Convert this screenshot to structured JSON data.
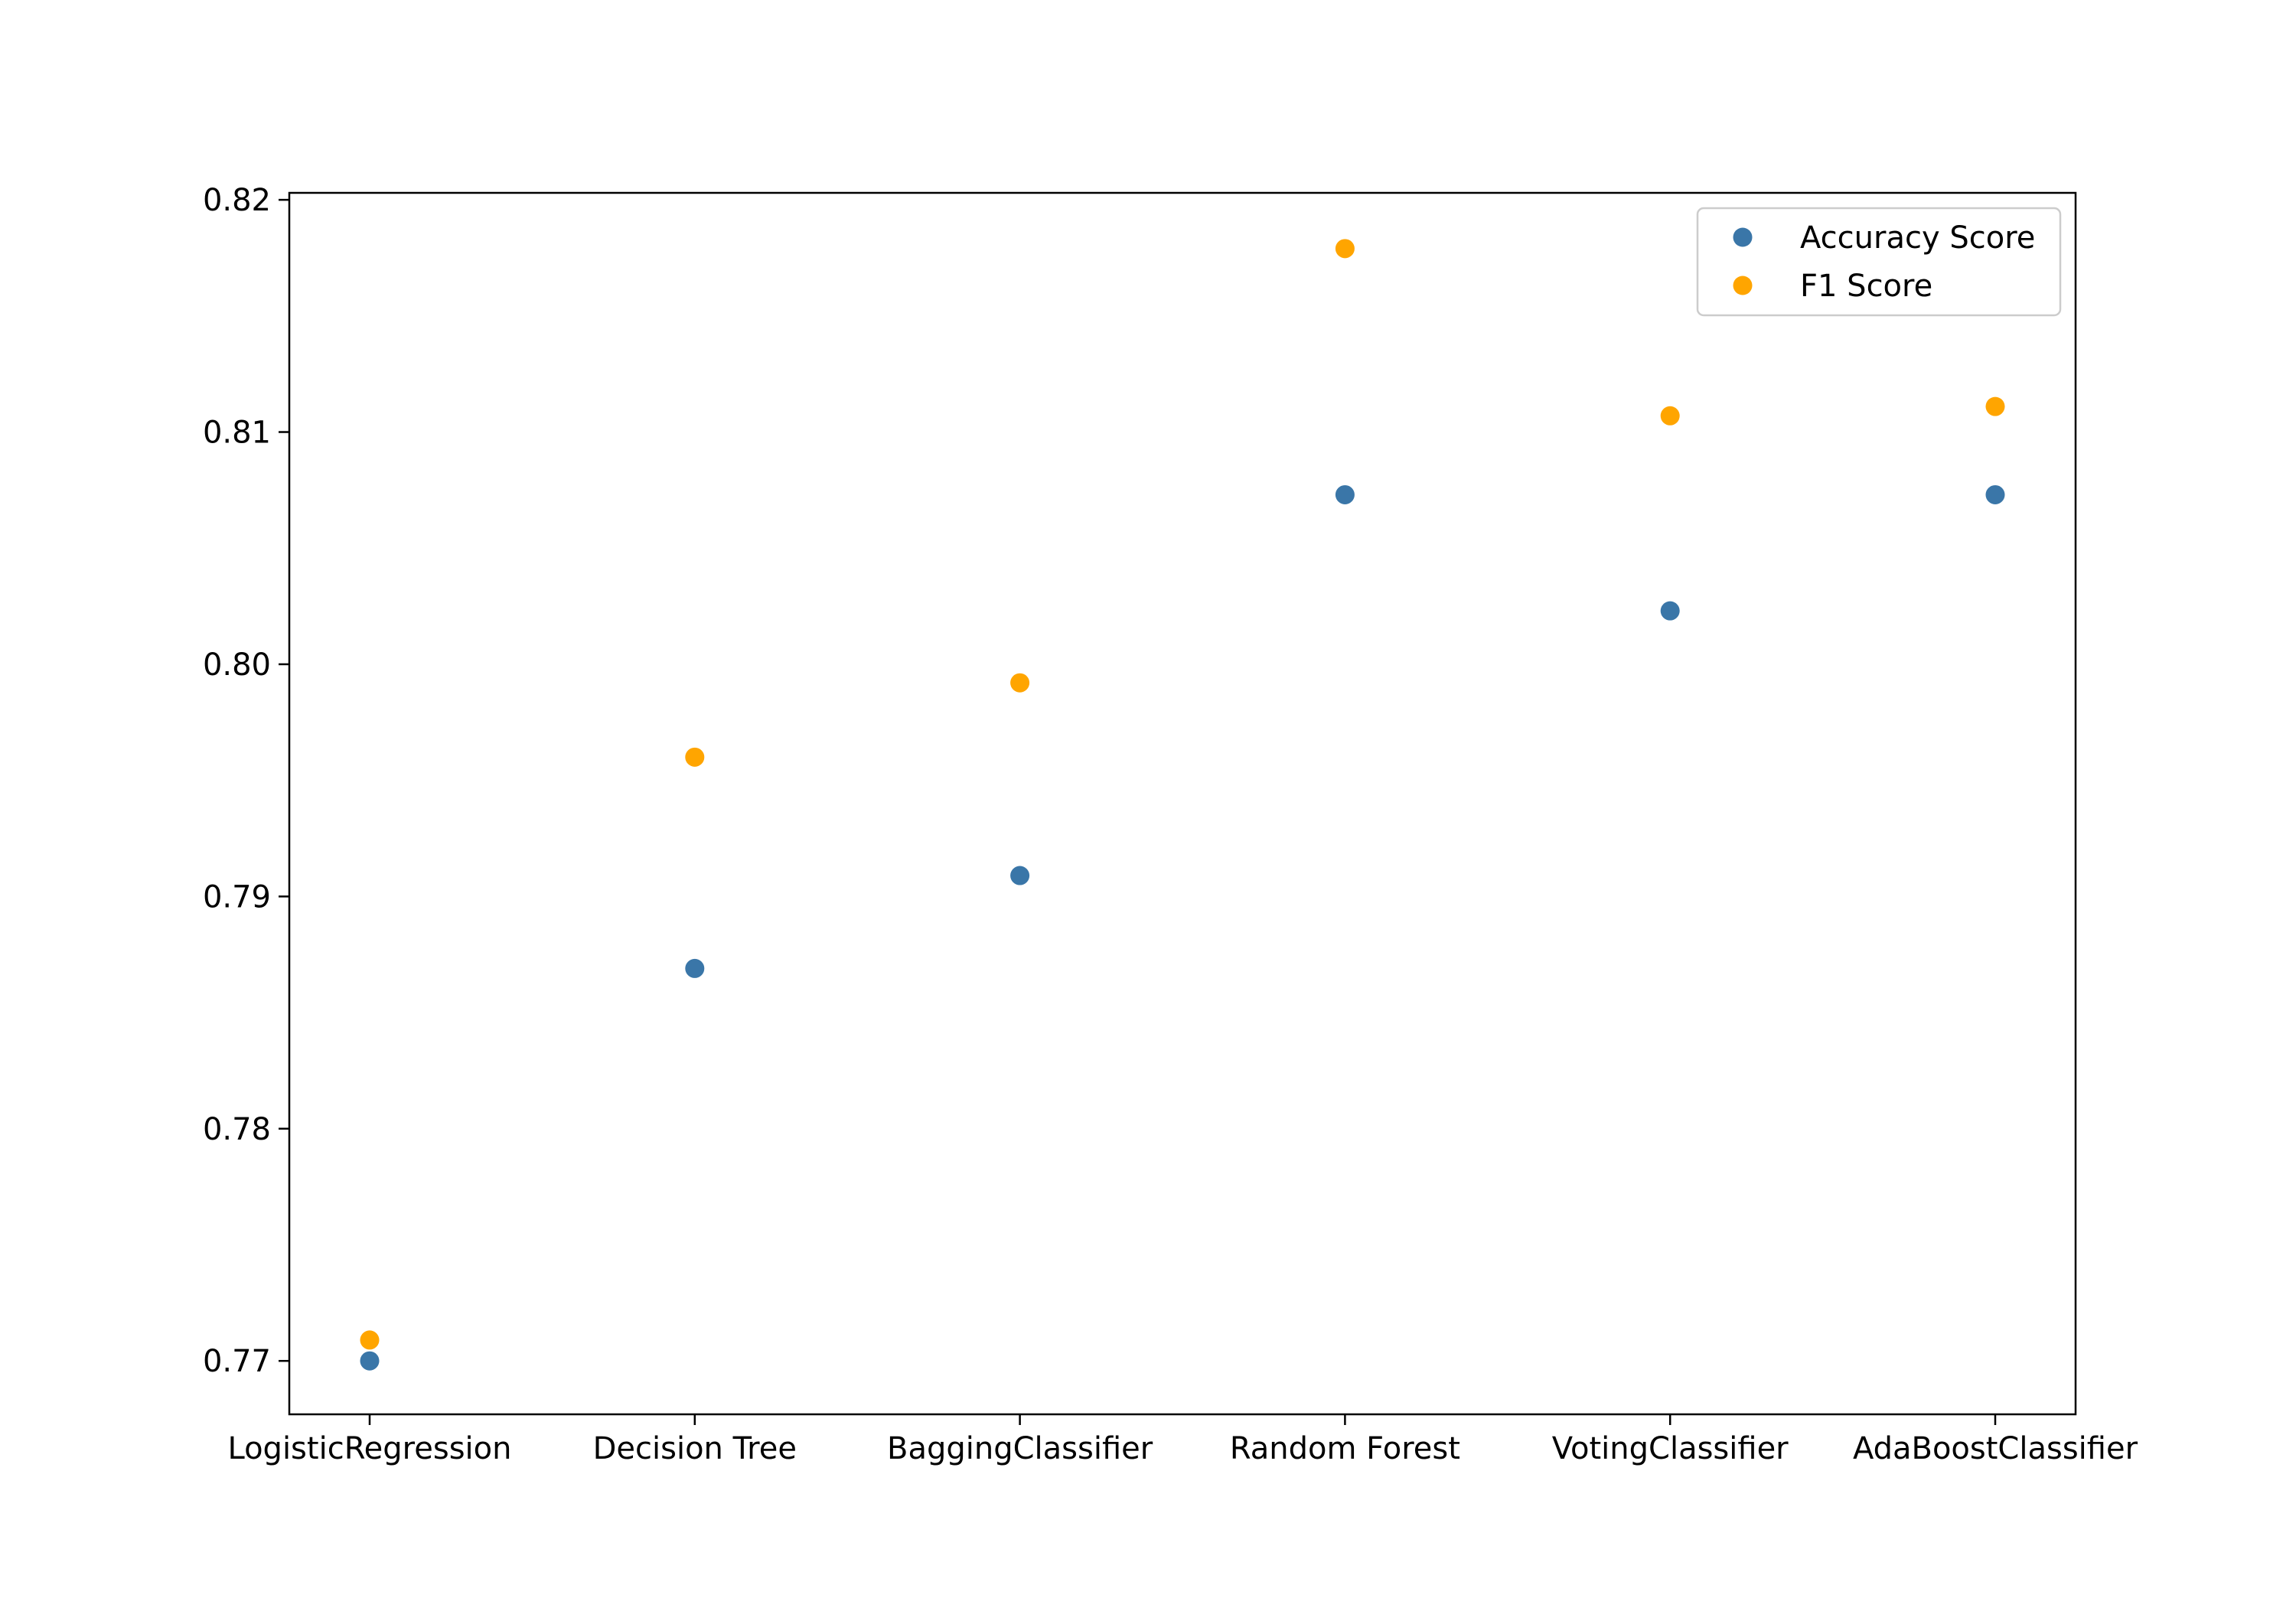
{
  "chart_data": {
    "type": "scatter",
    "title": "",
    "xlabel": "",
    "ylabel": "",
    "categories": [
      "LogisticRegression",
      "Decision Tree",
      "BaggingClassifier",
      "Random Forest",
      "VotingClassifier",
      "AdaBoostClassifier"
    ],
    "series": [
      {
        "name": "Accuracy Score",
        "color": "#3a76a8",
        "values": [
          0.77,
          0.7869,
          0.7909,
          0.8073,
          0.8023,
          0.8073
        ]
      },
      {
        "name": "F1 Score",
        "color": "#ffa500",
        "values": [
          0.7709,
          0.796,
          0.7992,
          0.8179,
          0.8107,
          0.8111
        ]
      }
    ],
    "ylim": [
      0.7677,
      0.8203
    ],
    "yticks": [
      0.77,
      0.78,
      0.79,
      0.8,
      0.81,
      0.82
    ],
    "ytick_labels": [
      "0.77",
      "0.78",
      "0.79",
      "0.80",
      "0.81",
      "0.82"
    ],
    "grid": false,
    "legend_position": "upper right"
  }
}
